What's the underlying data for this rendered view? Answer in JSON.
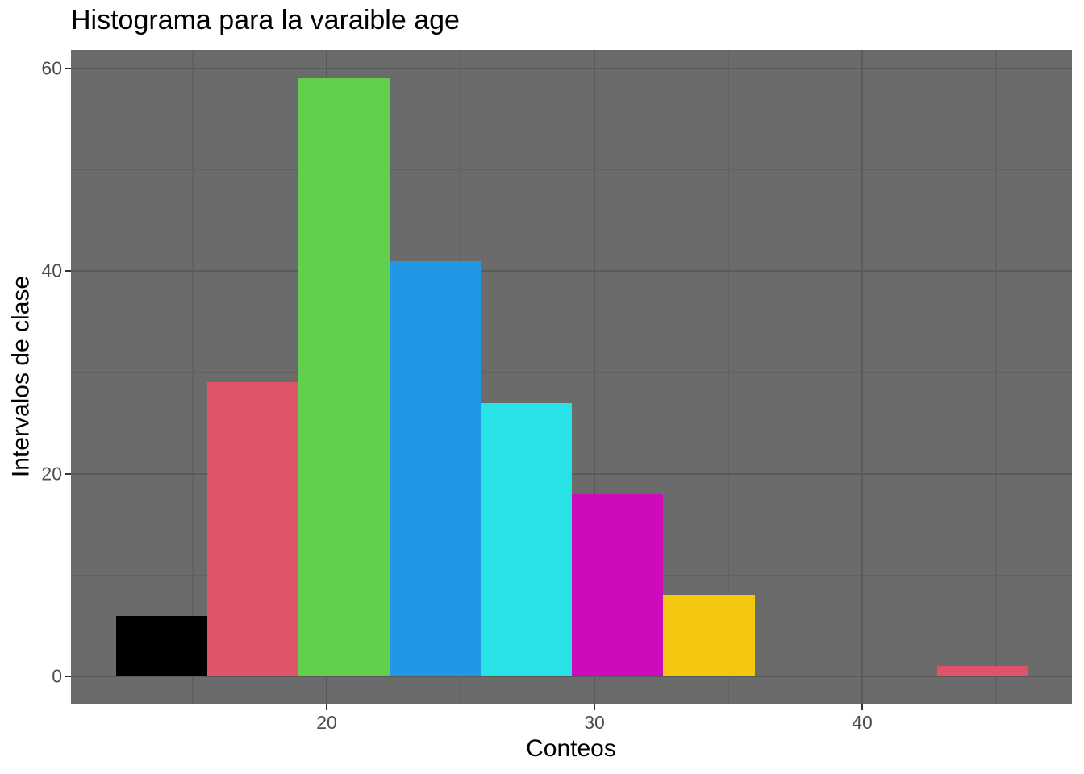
{
  "chart_data": {
    "type": "bar",
    "title": "Histograma para la varaible age",
    "xlabel": "Conteos",
    "ylabel": "Intervalos de clase",
    "bin_edges": [
      12.14,
      15.55,
      18.95,
      22.36,
      25.76,
      29.17,
      32.57,
      35.98,
      39.38,
      42.79,
      46.19
    ],
    "counts": [
      6,
      29,
      59,
      41,
      27,
      18,
      8,
      0,
      0,
      1
    ],
    "bar_colors": [
      "#000000",
      "#DF536B",
      "#61D04F",
      "#2297E6",
      "#28E2E5",
      "#CD0BBC",
      "#F5C710",
      "#9E9E9E",
      "#000000",
      "#DF536B"
    ],
    "x_ticks": [
      "20",
      "30",
      "40"
    ],
    "x_tick_values": [
      20,
      30,
      40
    ],
    "x_minor_values": [
      15,
      25,
      35,
      45
    ],
    "y_ticks": [
      "0",
      "20",
      "40",
      "60"
    ],
    "y_tick_values": [
      0,
      20,
      40,
      60
    ],
    "y_minor_values": [
      10,
      30,
      50
    ],
    "xlim": [
      10.45,
      47.83
    ],
    "ylim": [
      -2.7,
      61.81
    ],
    "grid": true,
    "legend_position": "none",
    "panel_bg": "#6B6B6B",
    "grid_major_color": "#5A5A5A",
    "grid_minor_color": "#626262",
    "tick_mark_color": "#333333",
    "tick_label_color": "#4D4D4D",
    "title_color": "#000000"
  }
}
